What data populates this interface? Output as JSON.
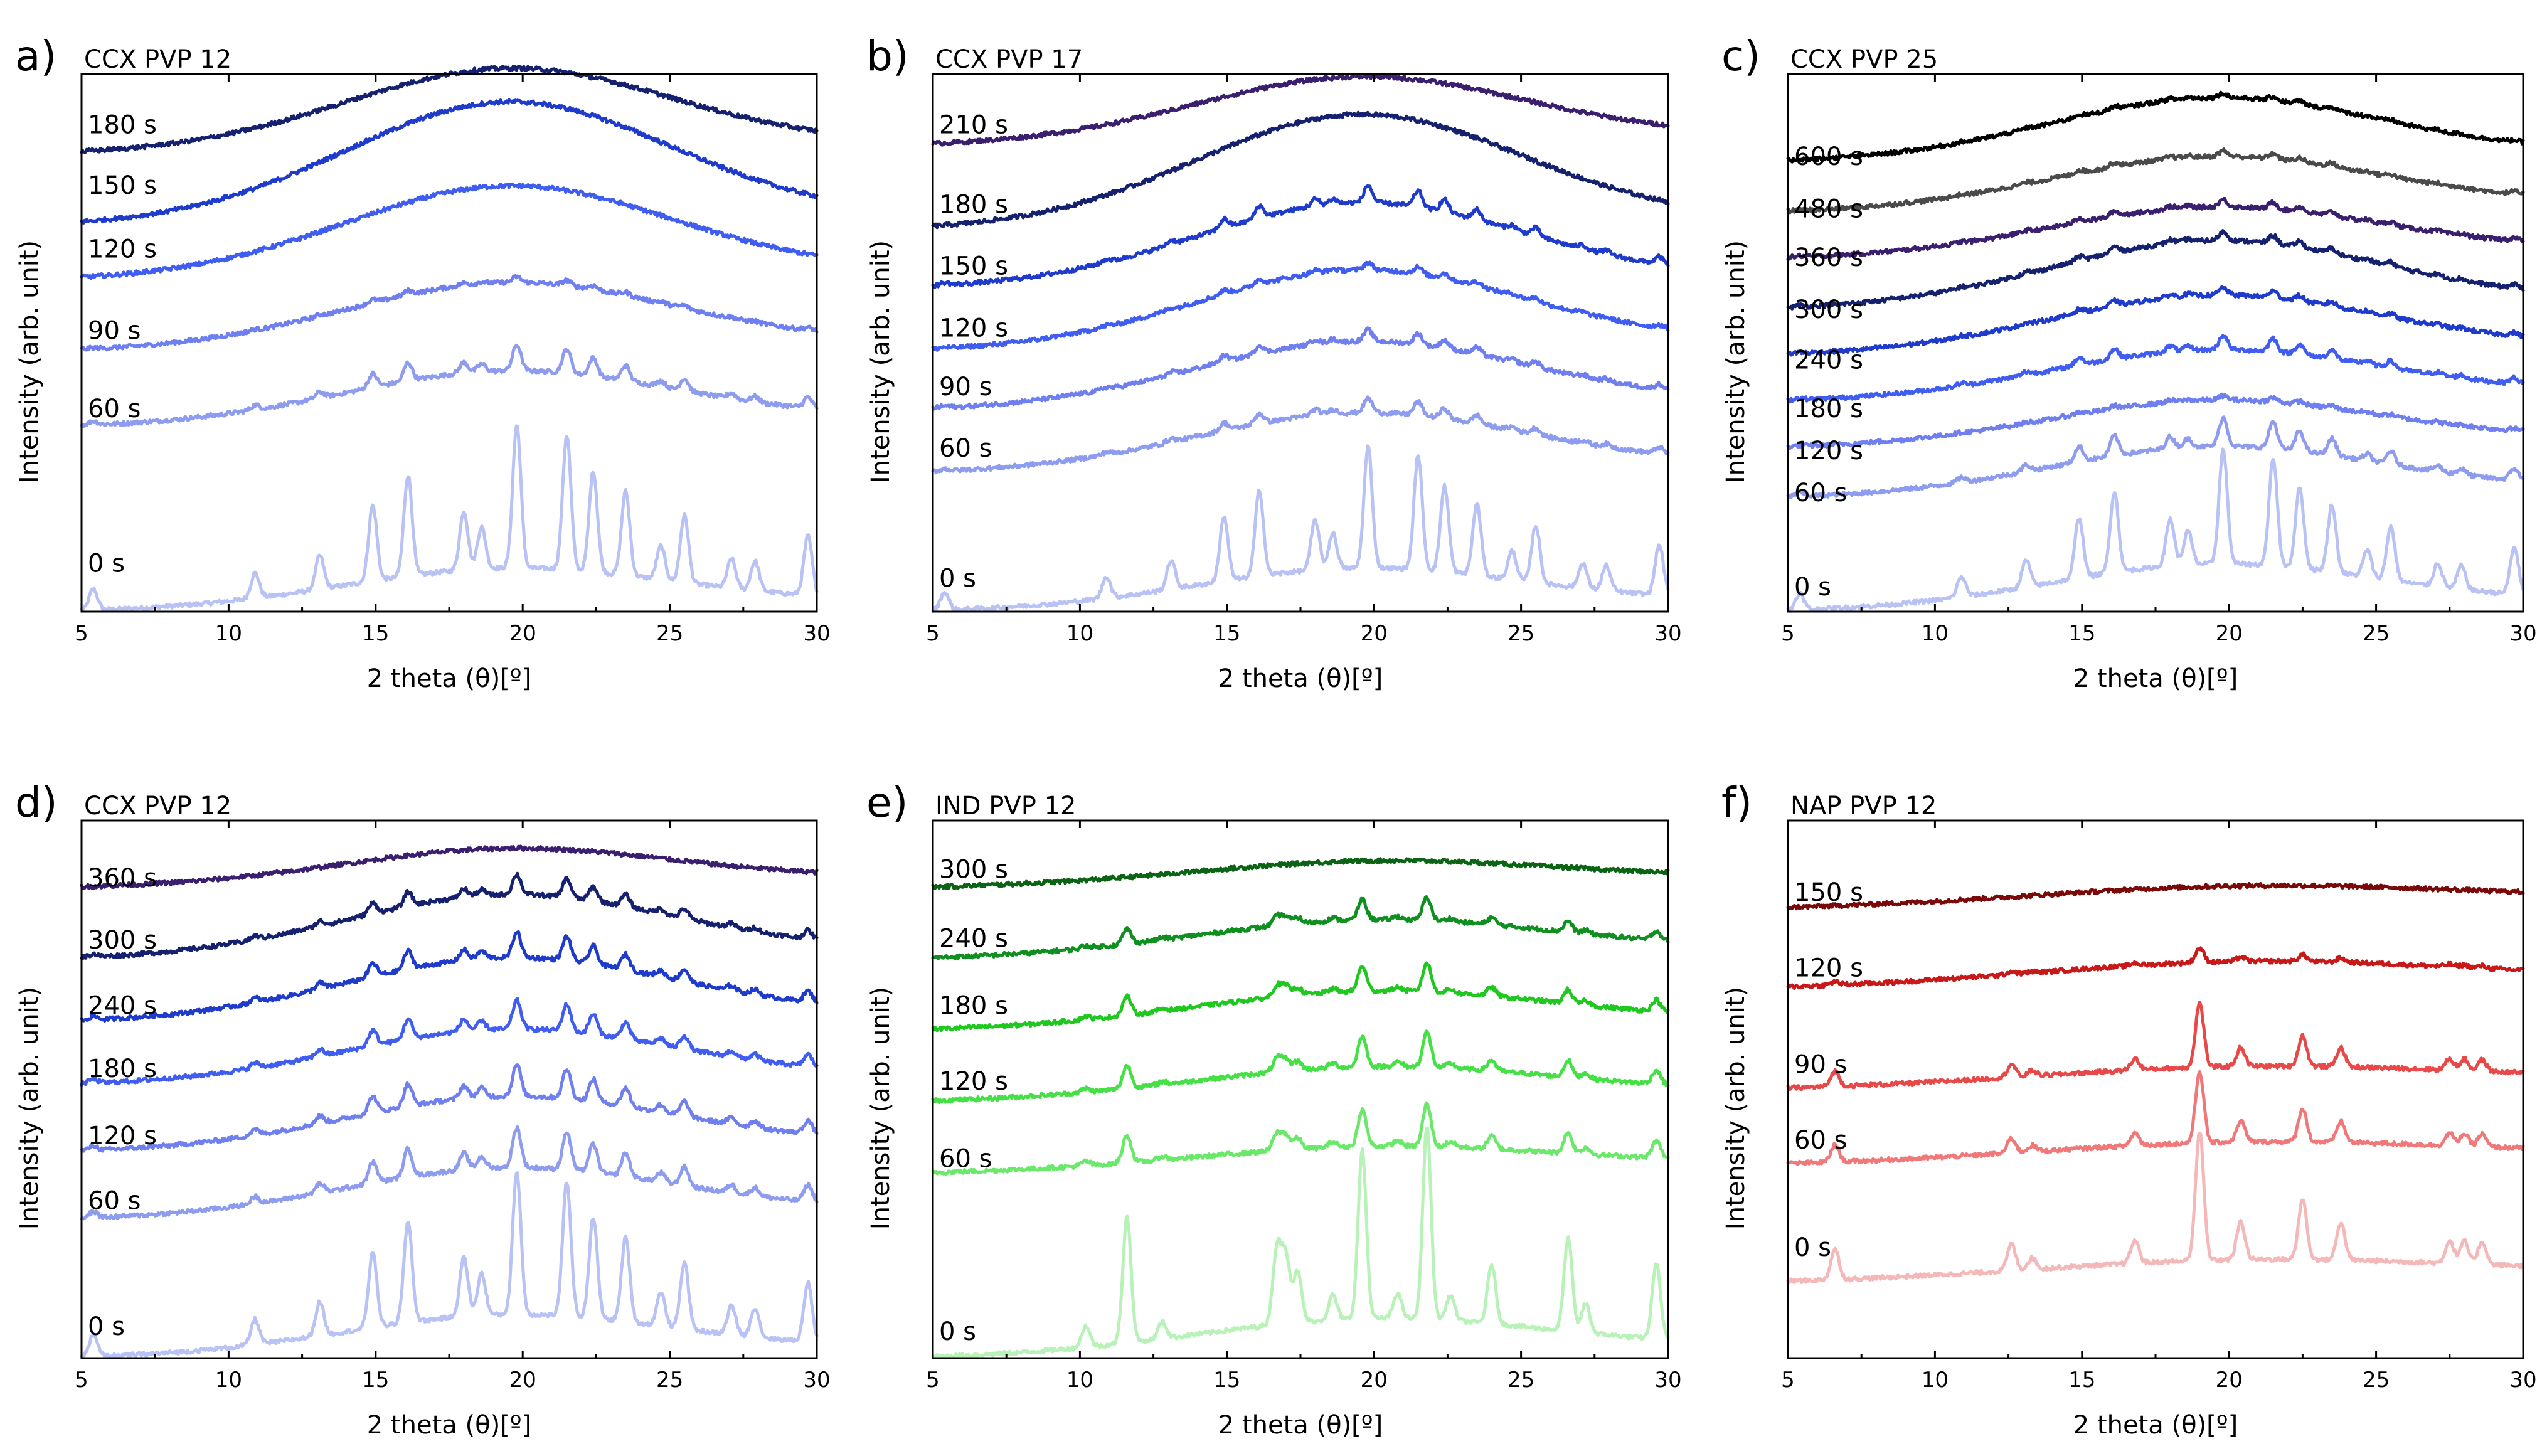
{
  "chart_data": [
    {
      "type": "line",
      "panel": "a)",
      "title": "CCX PVP 12",
      "xlabel": "2 theta (θ)[º]",
      "ylabel": "Intensity (arb. unit)",
      "xlim": [
        5,
        30
      ],
      "xticks": [
        "5",
        "10",
        "15",
        "20",
        "25",
        "30"
      ],
      "ylim": [
        0,
        6.4
      ],
      "series": [
        {
          "name": "0 s",
          "offset": 0.0,
          "color": "#b9c2f4",
          "profile": "ccx",
          "halo": 0.45,
          "crystal": 1.0,
          "label_y": 0.58
        },
        {
          "name": "60 s",
          "offset": 2.2,
          "color": "#8e9cf0",
          "profile": "ccx",
          "halo": 0.6,
          "crystal": 0.18,
          "label_y": 2.42
        },
        {
          "name": "90 s",
          "offset": 3.1,
          "color": "#6f7ff0",
          "profile": "ccx",
          "halo": 0.75,
          "crystal": 0.04,
          "label_y": 3.35
        },
        {
          "name": "120 s",
          "offset": 3.95,
          "color": "#3f5df0",
          "profile": "ccx",
          "halo": 1.05,
          "crystal": 0.0,
          "label_y": 4.32
        },
        {
          "name": "150 s",
          "offset": 4.6,
          "color": "#1f3bcc",
          "profile": "ccx",
          "halo": 1.4,
          "crystal": 0.0,
          "label_y": 5.08
        },
        {
          "name": "180 s",
          "offset": 5.45,
          "color": "#15206e",
          "profile": "ccx",
          "halo": 0.95,
          "crystal": 0.0,
          "label_y": 5.8
        }
      ]
    },
    {
      "type": "line",
      "panel": "b)",
      "title": "CCX PVP 17",
      "xlabel": "2 theta (θ)[º]",
      "ylabel": "Intensity (arb. unit)",
      "xlim": [
        5,
        30
      ],
      "xticks": [
        "5",
        "10",
        "15",
        "20",
        "25",
        "30"
      ],
      "ylim": [
        0,
        6.4
      ],
      "series": [
        {
          "name": "0 s",
          "offset": 0.0,
          "color": "#b9c2f4",
          "profile": "ccx",
          "halo": 0.45,
          "crystal": 0.85,
          "label_y": 0.4
        },
        {
          "name": "60 s",
          "offset": 1.65,
          "color": "#8e9cf0",
          "profile": "ccx",
          "halo": 0.65,
          "crystal": 0.1,
          "label_y": 1.95
        },
        {
          "name": "90 s",
          "offset": 2.4,
          "color": "#6f7ff0",
          "profile": "ccx",
          "halo": 0.75,
          "crystal": 0.08,
          "label_y": 2.68
        },
        {
          "name": "120 s",
          "offset": 3.1,
          "color": "#3f5df0",
          "profile": "ccx",
          "halo": 0.9,
          "crystal": 0.05,
          "label_y": 3.38
        },
        {
          "name": "150 s",
          "offset": 3.85,
          "color": "#1f3bcc",
          "profile": "ccx",
          "halo": 0.95,
          "crystal": 0.12,
          "label_y": 4.12
        },
        {
          "name": "180 s",
          "offset": 4.55,
          "color": "#15206e",
          "profile": "ccx",
          "halo": 1.3,
          "crystal": 0.0,
          "label_y": 4.85
        },
        {
          "name": "210 s",
          "offset": 5.55,
          "color": "#3a1f6e",
          "profile": "ccx",
          "halo": 0.75,
          "crystal": 0.0,
          "label_y": 5.8
        }
      ]
    },
    {
      "type": "line",
      "panel": "c)",
      "title": "CCX PVP 25",
      "xlabel": "2 theta (θ)[º]",
      "ylabel": "Intensity (arb. unit)",
      "xlim": [
        5,
        30
      ],
      "xticks": [
        "5",
        "10",
        "15",
        "20",
        "25",
        "30"
      ],
      "ylim": [
        0,
        6.4
      ],
      "series": [
        {
          "name": "0 s",
          "offset": 0.0,
          "color": "#b9c2f4",
          "profile": "ccx",
          "halo": 0.5,
          "crystal": 0.8,
          "label_y": 0.3
        },
        {
          "name": "60 s",
          "offset": 1.35,
          "color": "#8e9cf0",
          "profile": "ccx",
          "halo": 0.55,
          "crystal": 0.2,
          "label_y": 1.42
        },
        {
          "name": "120 s",
          "offset": 1.95,
          "color": "#6f7ff0",
          "profile": "ccx",
          "halo": 0.5,
          "crystal": 0.03,
          "label_y": 1.92
        },
        {
          "name": "180 s",
          "offset": 2.5,
          "color": "#3f5df0",
          "profile": "ccx",
          "halo": 0.55,
          "crystal": 0.1,
          "label_y": 2.42
        },
        {
          "name": "240 s",
          "offset": 3.05,
          "color": "#1f3bcc",
          "profile": "ccx",
          "halo": 0.65,
          "crystal": 0.05,
          "label_y": 3.0
        },
        {
          "name": "300 s",
          "offset": 3.6,
          "color": "#15206e",
          "profile": "ccx",
          "halo": 0.75,
          "crystal": 0.06,
          "label_y": 3.6
        },
        {
          "name": "360 s",
          "offset": 4.2,
          "color": "#3a1f6e",
          "profile": "ccx",
          "halo": 0.55,
          "crystal": 0.05,
          "label_y": 4.22
        },
        {
          "name": "480 s",
          "offset": 4.75,
          "color": "#4a4a4a",
          "profile": "ccx",
          "halo": 0.6,
          "crystal": 0.04,
          "label_y": 4.8
        },
        {
          "name": "600 s",
          "offset": 5.35,
          "color": "#000000",
          "profile": "ccx",
          "halo": 0.7,
          "crystal": 0.03,
          "label_y": 5.42
        }
      ]
    },
    {
      "type": "line",
      "panel": "d)",
      "title": "CCX PVP 12",
      "xlabel": "2 theta (θ)[º]",
      "ylabel": "Intensity (arb. unit)",
      "xlim": [
        5,
        30
      ],
      "xticks": [
        "5",
        "10",
        "15",
        "20",
        "25",
        "30"
      ],
      "ylim": [
        0,
        6.4
      ],
      "series": [
        {
          "name": "0 s",
          "offset": 0.0,
          "color": "#b9c2f4",
          "profile": "ccx",
          "halo": 0.45,
          "crystal": 1.0,
          "label_y": 0.38
        },
        {
          "name": "60 s",
          "offset": 1.65,
          "color": "#8e9cf0",
          "profile": "ccx",
          "halo": 0.55,
          "crystal": 0.28,
          "label_y": 1.88
        },
        {
          "name": "120 s",
          "offset": 2.45,
          "color": "#6f7ff0",
          "profile": "ccx",
          "halo": 0.6,
          "crystal": 0.22,
          "label_y": 2.65
        },
        {
          "name": "180 s",
          "offset": 3.25,
          "color": "#3f5df0",
          "profile": "ccx",
          "halo": 0.6,
          "crystal": 0.2,
          "label_y": 3.45
        },
        {
          "name": "240 s",
          "offset": 4.0,
          "color": "#1f3bcc",
          "profile": "ccx",
          "halo": 0.7,
          "crystal": 0.18,
          "label_y": 4.2
        },
        {
          "name": "300 s",
          "offset": 4.75,
          "color": "#15206e",
          "profile": "ccx",
          "halo": 0.7,
          "crystal": 0.14,
          "label_y": 4.98
        },
        {
          "name": "360 s",
          "offset": 5.6,
          "color": "#3a1f6e",
          "profile": "ccx",
          "halo": 0.4,
          "crystal": 0.0,
          "label_y": 5.72
        }
      ]
    },
    {
      "type": "line",
      "panel": "e)",
      "title": "IND PVP 12",
      "xlabel": "2 theta (θ)[º]",
      "ylabel": "Intensity (arb. unit)",
      "xlim": [
        5,
        30
      ],
      "xticks": [
        "5",
        "10",
        "15",
        "20",
        "25",
        "30"
      ],
      "ylim": [
        0,
        6.4
      ],
      "series": [
        {
          "name": "0 s",
          "offset": 0.0,
          "color": "#b8f2b8",
          "profile": "ind",
          "halo": 0.4,
          "crystal": 1.0,
          "label_y": 0.32
        },
        {
          "name": "60 s",
          "offset": 2.2,
          "color": "#6ae86a",
          "profile": "ind",
          "halo": 0.25,
          "crystal": 0.22,
          "label_y": 2.38
        },
        {
          "name": "120 s",
          "offset": 3.05,
          "color": "#45e045",
          "profile": "ind",
          "halo": 0.35,
          "crystal": 0.18,
          "label_y": 3.3
        },
        {
          "name": "180 s",
          "offset": 3.9,
          "color": "#1fc81f",
          "profile": "ind",
          "halo": 0.4,
          "crystal": 0.15,
          "label_y": 4.2
        },
        {
          "name": "240 s",
          "offset": 4.75,
          "color": "#0f8f1f",
          "profile": "ind",
          "halo": 0.4,
          "crystal": 0.12,
          "label_y": 5.0
        },
        {
          "name": "300 s",
          "offset": 5.6,
          "color": "#0a6414",
          "profile": "ind",
          "halo": 0.25,
          "crystal": 0.0,
          "label_y": 5.82
        }
      ]
    },
    {
      "type": "line",
      "panel": "f)",
      "title": "NAP PVP 12",
      "xlabel": "2 theta (θ)[º]",
      "ylabel": "Intensity (arb. unit)",
      "xlim": [
        5,
        30
      ],
      "xticks": [
        "5",
        "10",
        "15",
        "20",
        "25",
        "30"
      ],
      "ylim": [
        0,
        6.4
      ],
      "series": [
        {
          "name": "0 s",
          "offset": 0.9,
          "color": "#f5b8b8",
          "profile": "nap",
          "halo": 0.2,
          "crystal": 0.9,
          "label_y": 1.32
        },
        {
          "name": "60 s",
          "offset": 2.3,
          "color": "#f07878",
          "profile": "nap",
          "halo": 0.2,
          "crystal": 0.5,
          "label_y": 2.6
        },
        {
          "name": "90 s",
          "offset": 3.2,
          "color": "#e84848",
          "profile": "nap",
          "halo": 0.2,
          "crystal": 0.45,
          "label_y": 3.5
        },
        {
          "name": "120 s",
          "offset": 4.4,
          "color": "#c81818",
          "profile": "nap",
          "halo": 0.25,
          "crystal": 0.1,
          "label_y": 4.65
        },
        {
          "name": "150 s",
          "offset": 5.35,
          "color": "#7a0a0a",
          "profile": "nap",
          "halo": 0.2,
          "crystal": 0.0,
          "label_y": 5.55
        }
      ]
    }
  ],
  "profiles": {
    "ccx": {
      "halo_center": 19.5,
      "halo_width": 5.5,
      "peaks": [
        [
          5.4,
          0.25
        ],
        [
          10.9,
          0.3
        ],
        [
          13.1,
          0.4
        ],
        [
          14.9,
          0.9
        ],
        [
          16.1,
          1.2
        ],
        [
          18.0,
          0.7
        ],
        [
          18.6,
          0.5
        ],
        [
          19.8,
          1.7
        ],
        [
          21.5,
          1.6
        ],
        [
          22.4,
          1.2
        ],
        [
          23.5,
          1.0
        ],
        [
          24.7,
          0.4
        ],
        [
          25.5,
          0.8
        ],
        [
          27.1,
          0.35
        ],
        [
          27.9,
          0.35
        ],
        [
          29.7,
          0.7
        ]
      ]
    },
    "ind": {
      "halo_center": 20.0,
      "halo_width": 6.0,
      "peaks": [
        [
          10.2,
          0.25
        ],
        [
          11.6,
          1.5
        ],
        [
          12.8,
          0.2
        ],
        [
          16.7,
          0.9
        ],
        [
          17.0,
          0.8
        ],
        [
          17.4,
          0.6
        ],
        [
          18.6,
          0.3
        ],
        [
          19.6,
          2.0
        ],
        [
          20.8,
          0.3
        ],
        [
          21.8,
          2.3
        ],
        [
          22.6,
          0.3
        ],
        [
          24.0,
          0.7
        ],
        [
          26.6,
          1.1
        ],
        [
          27.2,
          0.35
        ],
        [
          29.6,
          0.9
        ]
      ]
    },
    "nap": {
      "halo_center": 20.5,
      "halo_width": 7.0,
      "peaks": [
        [
          6.6,
          0.4
        ],
        [
          12.6,
          0.35
        ],
        [
          13.3,
          0.15
        ],
        [
          16.8,
          0.3
        ],
        [
          19.0,
          1.7
        ],
        [
          20.4,
          0.5
        ],
        [
          22.5,
          0.8
        ],
        [
          23.8,
          0.5
        ],
        [
          27.5,
          0.3
        ],
        [
          28.0,
          0.3
        ],
        [
          28.6,
          0.3
        ]
      ]
    }
  }
}
